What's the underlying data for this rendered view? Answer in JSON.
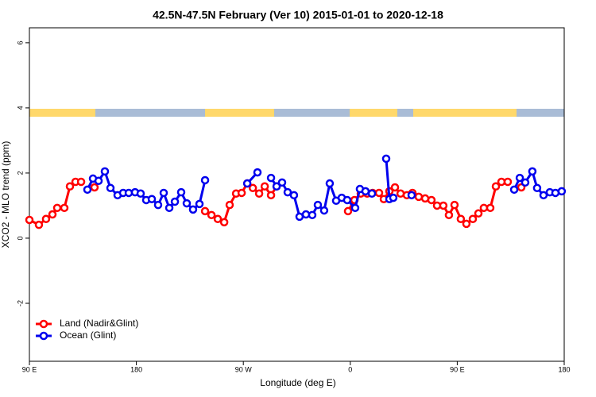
{
  "chart_data": {
    "type": "line",
    "title": "42.5N-47.5N February (Ver 10)   2015-01-01 to 2020-12-18",
    "x_label": "Longitude (deg E)",
    "y_label": "XCO2 - MLO trend (ppm)",
    "xlim": [
      90,
      540
    ],
    "ylim": [
      -3.78,
      6.46
    ],
    "xticks": [
      {
        "value": 90,
        "label": "90 E"
      },
      180,
      {
        "value": 270,
        "label": "90 W"
      },
      {
        "value": 360,
        "label": "0"
      },
      {
        "value": 450,
        "label": "90 E"
      },
      {
        "value": 540,
        "label": "180"
      }
    ],
    "yticks": [
      -2,
      0,
      2,
      4,
      6
    ],
    "legend": "bottom-left",
    "series": [
      {
        "name": "Land (Nadir&Glint)",
        "color": "#ff0000",
        "x": [
          90,
          98.0,
          104.0,
          109.4,
          113.4,
          119.4,
          124.1,
          128.8,
          133.5,
          null,
          144.8,
          null,
          237.8,
          243.2,
          248.5,
          253.9,
          258.5,
          263.9,
          268.6,
          273.3,
          278.0,
          283.3,
          288.0,
          293.3,
          298.0,
          null,
          358.1,
          363.5,
          368.8,
          374.2,
          378.8,
          384.2,
          388.2,
          392.9,
          397.6,
          402.3,
          407.6,
          412.3,
          417.6,
          423.0,
          428.3,
          433.0,
          438.3,
          443.0,
          447.7,
          453.0,
          457.7,
          463.1,
          467.8,
          472.4,
          477.8,
          482.5,
          487.2,
          492.5,
          null,
          503.9
        ],
        "values": [
          0.56,
          0.41,
          0.59,
          0.73,
          0.93,
          0.93,
          1.59,
          1.73,
          1.73,
          null,
          1.56,
          null,
          0.83,
          0.71,
          0.59,
          0.49,
          1.02,
          1.37,
          1.39,
          1.68,
          1.54,
          1.37,
          1.59,
          1.32,
          1.59,
          null,
          0.83,
          1.17,
          1.37,
          1.37,
          1.39,
          1.39,
          1.2,
          1.44,
          1.56,
          1.37,
          1.32,
          1.39,
          1.27,
          1.22,
          1.17,
          1.0,
          1.0,
          0.71,
          1.02,
          0.59,
          0.44,
          0.59,
          0.76,
          0.93,
          0.93,
          1.59,
          1.73,
          1.73,
          null,
          1.56
        ]
      },
      {
        "name": "Ocean (Glint)",
        "color": "#0000ee",
        "x": [
          138.8,
          143.5,
          148.2,
          153.5,
          158.2,
          164.2,
          168.9,
          173.6,
          178.9,
          183.6,
          188.3,
          193.0,
          198.3,
          203.0,
          207.7,
          212.4,
          217.7,
          222.4,
          227.7,
          233.1,
          237.8,
          null,
          273.3,
          281.9,
          null,
          293.3,
          298.0,
          302.6,
          307.3,
          312.6,
          317.3,
          322.7,
          328.0,
          332.7,
          338.0,
          342.7,
          348.1,
          352.8,
          357.4,
          364.1,
          368.1,
          372.8,
          378.2,
          null,
          390.2,
          392.9,
          396.2,
          null,
          411.6,
          null,
          497.9,
          502.6,
          507.2,
          513.2,
          517.2,
          522.6,
          527.9,
          532.6,
          537.9
        ],
        "values": [
          1.49,
          1.83,
          1.76,
          2.05,
          1.54,
          1.32,
          1.39,
          1.39,
          1.41,
          1.37,
          1.17,
          1.2,
          1.02,
          1.39,
          0.93,
          1.12,
          1.41,
          1.07,
          0.88,
          1.05,
          1.78,
          null,
          1.68,
          2.02,
          null,
          1.85,
          1.59,
          1.71,
          1.41,
          1.32,
          0.66,
          0.73,
          0.71,
          1.02,
          0.85,
          1.68,
          1.15,
          1.24,
          1.17,
          0.93,
          1.51,
          1.44,
          1.37,
          null,
          2.44,
          1.2,
          1.24,
          null,
          1.32,
          null,
          1.49,
          1.85,
          1.71,
          2.05,
          1.54,
          1.32,
          1.41,
          1.39,
          1.44
        ]
      }
    ]
  }
}
